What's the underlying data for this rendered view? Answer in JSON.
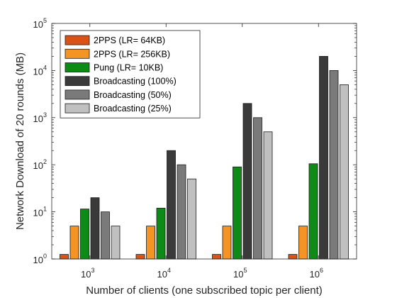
{
  "chart_data": {
    "type": "bar",
    "xlabel": "Number of clients (one subscribed topic per client)",
    "ylabel": "Network Download of 20 rounds (MB)",
    "yscale": "log",
    "ylim": [
      1,
      100000
    ],
    "grid": false,
    "legend_position": "top-left",
    "categories": [
      {
        "base": "10",
        "exp": "3"
      },
      {
        "base": "10",
        "exp": "4"
      },
      {
        "base": "10",
        "exp": "5"
      },
      {
        "base": "10",
        "exp": "6"
      }
    ],
    "y_ticks": [
      {
        "value": 1,
        "base": "10",
        "exp": "0"
      },
      {
        "value": 10,
        "base": "10",
        "exp": "1"
      },
      {
        "value": 100,
        "base": "10",
        "exp": "2"
      },
      {
        "value": 1000,
        "base": "10",
        "exp": "3"
      },
      {
        "value": 10000,
        "base": "10",
        "exp": "4"
      },
      {
        "value": 100000,
        "base": "10",
        "exp": "5"
      }
    ],
    "series": [
      {
        "name": "2PPS (LR= 64KB)",
        "color": "#d95319",
        "values": [
          1.25,
          1.25,
          1.25,
          1.25
        ]
      },
      {
        "name": "2PPS (LR= 256KB)",
        "color": "#f39425",
        "values": [
          5,
          5,
          5,
          5
        ]
      },
      {
        "name": "Pung (LR= 10KB)",
        "color": "#0e8a16",
        "values": [
          11.5,
          12,
          90,
          105
        ]
      },
      {
        "name": "Broadcasting (100%)",
        "color": "#3a3a3a",
        "values": [
          20,
          200,
          2000,
          20000
        ]
      },
      {
        "name": "Broadcasting (50%)",
        "color": "#7a7a7a",
        "values": [
          10,
          100,
          1000,
          10000
        ]
      },
      {
        "name": "Broadcasting (25%)",
        "color": "#c0c0c0",
        "values": [
          5,
          50,
          500,
          5000
        ]
      }
    ]
  }
}
